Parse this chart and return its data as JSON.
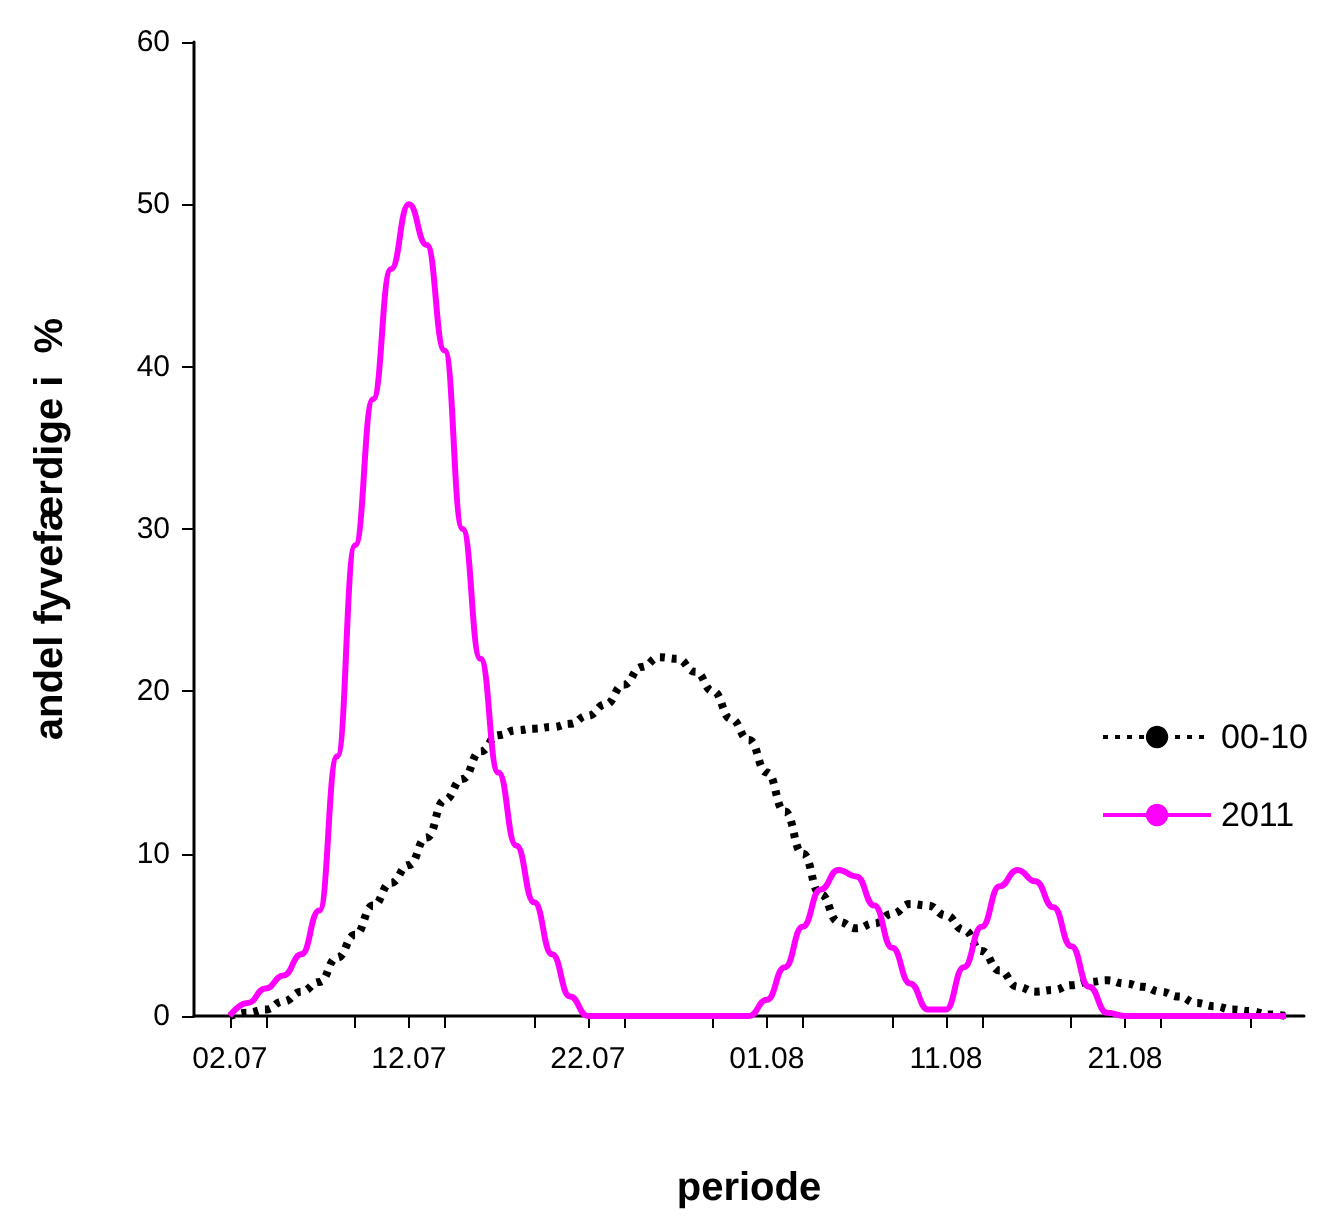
{
  "chart_data": {
    "type": "line",
    "xlabel": "periode",
    "ylabel": "andel fyvefærdige i  %",
    "x": [
      "--07-02",
      "--07-03",
      "--07-04",
      "--07-05",
      "--07-06",
      "--07-07",
      "--07-08",
      "--07-09",
      "--07-10",
      "--07-11",
      "--07-12",
      "--07-13",
      "--07-14",
      "--07-15",
      "--07-16",
      "--07-17",
      "--07-18",
      "--07-19",
      "--07-20",
      "--07-21",
      "--07-22",
      "--07-23",
      "--07-24",
      "--07-25",
      "--07-26",
      "--07-27",
      "--07-28",
      "--07-29",
      "--07-30",
      "--07-31",
      "--08-01",
      "--08-02",
      "--08-03",
      "--08-04",
      "--08-05",
      "--08-06",
      "--08-07",
      "--08-08",
      "--08-09",
      "--08-10",
      "--08-11",
      "--08-12",
      "--08-13",
      "--08-14",
      "--08-15",
      "--08-16",
      "--08-17",
      "--08-18",
      "--08-19",
      "--08-20",
      "--08-21",
      "--08-22",
      "--08-23",
      "--08-24",
      "--08-25",
      "--08-26",
      "--08-27",
      "--08-28",
      "--08-29",
      "--08-30"
    ],
    "series": [
      {
        "name": "00-10",
        "color": "#000000",
        "line_style": "dotted",
        "values": [
          0,
          0.2,
          0.4,
          0.9,
          1.5,
          2.1,
          3.6,
          5,
          6.8,
          8.2,
          9.3,
          11,
          13.3,
          14.6,
          16.3,
          17.3,
          17.6,
          17.7,
          17.8,
          18,
          18.5,
          19.2,
          20.4,
          21.5,
          22.1,
          22,
          21.2,
          20,
          18.3,
          17,
          15,
          12.6,
          10,
          7.5,
          5.8,
          5.4,
          5.7,
          6.3,
          6.9,
          6.8,
          6.2,
          5.3,
          4,
          2.8,
          1.8,
          1.5,
          1.6,
          1.9,
          2.1,
          2.2,
          2,
          1.8,
          1.5,
          1.2,
          0.8,
          0.6,
          0.4,
          0.3,
          0.1,
          0
        ]
      },
      {
        "name": "2011",
        "color": "#ff00ff",
        "line_style": "solid",
        "values": [
          0,
          0.8,
          1.7,
          2.5,
          3.8,
          6.5,
          16,
          29,
          38,
          46,
          50,
          47.5,
          41,
          30,
          22,
          15,
          10.5,
          7,
          3.8,
          1.2,
          0,
          0,
          0,
          0,
          0,
          0,
          0,
          0,
          0,
          0,
          1,
          3,
          5.5,
          7.8,
          9,
          8.6,
          6.8,
          4.2,
          2,
          0.4,
          0.4,
          3,
          5.5,
          8,
          9,
          8.3,
          6.7,
          4.3,
          1.8,
          0.2,
          0,
          0,
          0,
          0,
          0,
          0,
          0,
          0,
          0,
          0
        ]
      }
    ],
    "xlim": [
      "--06-30",
      "--08-31"
    ],
    "xticks": [
      {
        "value": "--07-02",
        "label": "02.07"
      },
      {
        "value": "--07-12",
        "label": "12.07"
      },
      {
        "value": "--07-22",
        "label": "22.07"
      },
      {
        "value": "--08-01",
        "label": "01.08"
      },
      {
        "value": "--08-11",
        "label": "11.08"
      },
      {
        "value": "--08-21",
        "label": "21.08"
      },
      {
        "value": "--07-04",
        "label": null
      },
      {
        "value": "--07-09",
        "label": null
      },
      {
        "value": "--07-14",
        "label": null
      },
      {
        "value": "--07-19",
        "label": null
      },
      {
        "value": "--07-24",
        "label": null
      },
      {
        "value": "--07-29",
        "label": null
      },
      {
        "value": "--08-03",
        "label": null
      },
      {
        "value": "--08-08",
        "label": null
      },
      {
        "value": "--08-13",
        "label": null
      },
      {
        "value": "--08-18",
        "label": null
      },
      {
        "value": "--08-23",
        "label": null
      },
      {
        "value": "--08-28",
        "label": null
      }
    ],
    "ylim": [
      0,
      60
    ],
    "yticks": [
      0,
      10,
      20,
      30,
      40,
      50,
      60
    ],
    "grid": false,
    "legend": "right"
  }
}
